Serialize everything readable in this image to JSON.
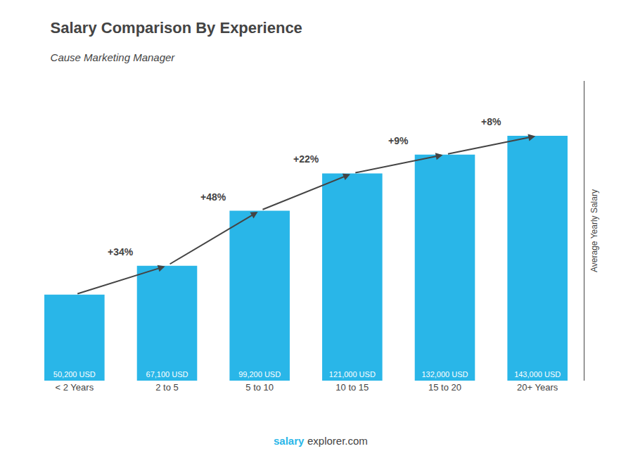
{
  "chart_data": {
    "type": "bar",
    "title": "Salary Comparison By Experience",
    "subtitle": "Cause Marketing Manager",
    "ylabel": "Average Yearly Salary",
    "categories": [
      "< 2 Years",
      "2 to 5",
      "5 to 10",
      "10 to 15",
      "15 to 20",
      "20+ Years"
    ],
    "values": [
      50200,
      67100,
      99200,
      121000,
      132000,
      143000
    ],
    "value_labels": [
      "50,200 USD",
      "67,100 USD",
      "99,200 USD",
      "121,000 USD",
      "132,000 USD",
      "143,000 USD"
    ],
    "data_labels": true,
    "color": "#29b6e8",
    "ylim": [
      0,
      175000
    ],
    "tick_labels": "x",
    "grid": false,
    "annotations": [
      {
        "text": "+34%",
        "from": "< 2 Years",
        "to": "2 to 5"
      },
      {
        "text": "+48%",
        "from": "2 to 5",
        "to": "5 to 10"
      },
      {
        "text": "+22%",
        "from": "5 to 10",
        "to": "10 to 15"
      },
      {
        "text": "+9%",
        "from": "10 to 15",
        "to": "15 to 20"
      },
      {
        "text": "+8%",
        "from": "15 to 20",
        "to": "20+ Years"
      }
    ],
    "footer": [
      {
        "text": "salary",
        "color": "#29b6e8"
      },
      {
        "text": "explorer.com"
      }
    ]
  }
}
